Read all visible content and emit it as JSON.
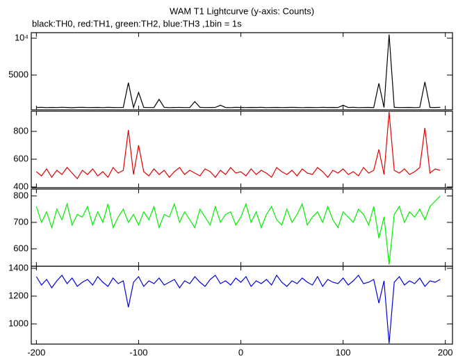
{
  "chart_data": [
    {
      "type": "line",
      "title": "WAM T1 Lightcurve (y-axis: Counts)",
      "subtitle": "black:TH0, red:TH1, green:TH2, blue:TH3 ,1bin = 1s",
      "x": [
        -200,
        -195,
        -190,
        -185,
        -180,
        -175,
        -170,
        -165,
        -160,
        -155,
        -150,
        -145,
        -140,
        -135,
        -130,
        -125,
        -120,
        -115,
        -110,
        -105,
        -100,
        -95,
        -90,
        -85,
        -80,
        -75,
        -70,
        -65,
        -60,
        -55,
        -50,
        -45,
        -40,
        -35,
        -30,
        -25,
        -20,
        -15,
        -10,
        -5,
        0,
        5,
        10,
        15,
        20,
        25,
        30,
        35,
        40,
        45,
        50,
        55,
        60,
        65,
        70,
        75,
        80,
        85,
        90,
        95,
        100,
        105,
        110,
        115,
        120,
        125,
        130,
        135,
        140,
        145,
        150,
        155,
        160,
        165,
        170,
        175,
        180,
        185,
        190,
        195
      ],
      "values": [
        600,
        620,
        580,
        610,
        590,
        630,
        600,
        570,
        610,
        620,
        590,
        600,
        610,
        580,
        620,
        600,
        590,
        610,
        3960,
        600,
        2640,
        610,
        590,
        600,
        1700,
        620,
        580,
        600,
        610,
        590,
        600,
        1400,
        620,
        590,
        600,
        610,
        900,
        600,
        580,
        620,
        600,
        590,
        610,
        600,
        620,
        580,
        600,
        610,
        590,
        600,
        620,
        600,
        580,
        610,
        600,
        590,
        620,
        600,
        610,
        590,
        900,
        600,
        620,
        580,
        600,
        610,
        590,
        3870,
        600,
        10500,
        620,
        590,
        600,
        610,
        580,
        600,
        4060,
        610,
        600,
        620
      ],
      "color": "#000000",
      "xlim": [
        -205,
        207
      ],
      "ylim": [
        280,
        10750
      ],
      "yticks": [
        5000,
        {
          "value": 10000,
          "label": "10⁴"
        }
      ]
    },
    {
      "type": "line",
      "x": [
        -200,
        -195,
        -190,
        -185,
        -180,
        -175,
        -170,
        -165,
        -160,
        -155,
        -150,
        -145,
        -140,
        -135,
        -130,
        -125,
        -120,
        -115,
        -110,
        -105,
        -100,
        -95,
        -90,
        -85,
        -80,
        -75,
        -70,
        -65,
        -60,
        -55,
        -50,
        -45,
        -40,
        -35,
        -30,
        -25,
        -20,
        -15,
        -10,
        -5,
        0,
        5,
        10,
        15,
        20,
        25,
        30,
        35,
        40,
        45,
        50,
        55,
        60,
        65,
        70,
        75,
        80,
        85,
        90,
        95,
        100,
        105,
        110,
        115,
        120,
        125,
        130,
        135,
        140,
        145,
        150,
        155,
        160,
        165,
        170,
        175,
        180,
        185,
        190,
        195
      ],
      "values": [
        510,
        480,
        530,
        470,
        520,
        490,
        540,
        500,
        460,
        520,
        490,
        530,
        480,
        510,
        470,
        540,
        500,
        520,
        810,
        490,
        700,
        510,
        480,
        530,
        490,
        520,
        470,
        510,
        540,
        490,
        520,
        500,
        480,
        530,
        510,
        470,
        520,
        490,
        540,
        500,
        510,
        480,
        530,
        490,
        520,
        500,
        470,
        540,
        510,
        490,
        520,
        480,
        530,
        500,
        490,
        540,
        510,
        470,
        520,
        500,
        530,
        490,
        510,
        480,
        540,
        500,
        520,
        670,
        490,
        940,
        520,
        500,
        530,
        490,
        510,
        540,
        825,
        500,
        530,
        520
      ],
      "color": "#e00000",
      "xlim": [
        -205,
        207
      ],
      "ylim": [
        395,
        945
      ],
      "yticks": [
        400,
        600,
        800
      ]
    },
    {
      "type": "line",
      "x": [
        -200,
        -195,
        -190,
        -185,
        -180,
        -175,
        -170,
        -165,
        -160,
        -155,
        -150,
        -145,
        -140,
        -135,
        -130,
        -125,
        -120,
        -115,
        -110,
        -105,
        -100,
        -95,
        -90,
        -85,
        -80,
        -75,
        -70,
        -65,
        -60,
        -55,
        -50,
        -45,
        -40,
        -35,
        -30,
        -25,
        -20,
        -15,
        -10,
        -5,
        0,
        5,
        10,
        15,
        20,
        25,
        30,
        35,
        40,
        45,
        50,
        55,
        60,
        65,
        70,
        75,
        80,
        85,
        90,
        95,
        100,
        105,
        110,
        115,
        120,
        125,
        130,
        135,
        140,
        145,
        150,
        155,
        160,
        165,
        170,
        175,
        180,
        185,
        190,
        195
      ],
      "values": [
        760,
        700,
        740,
        680,
        750,
        710,
        770,
        690,
        730,
        720,
        760,
        690,
        740,
        700,
        770,
        680,
        720,
        750,
        700,
        730,
        690,
        740,
        710,
        760,
        680,
        730,
        720,
        770,
        700,
        740,
        710,
        680,
        750,
        720,
        690,
        760,
        700,
        730,
        740,
        690,
        720,
        770,
        700,
        740,
        680,
        730,
        760,
        710,
        690,
        750,
        700,
        730,
        770,
        690,
        720,
        740,
        700,
        760,
        710,
        680,
        740,
        720,
        700,
        750,
        730,
        690,
        760,
        640,
        720,
        540,
        730,
        760,
        700,
        740,
        720,
        750,
        710,
        760,
        780,
        800
      ],
      "color": "#00ee00",
      "xlim": [
        -205,
        207
      ],
      "ylim": [
        534,
        826
      ],
      "yticks": [
        600,
        700,
        800
      ]
    },
    {
      "type": "line",
      "x": [
        -200,
        -195,
        -190,
        -185,
        -180,
        -175,
        -170,
        -165,
        -160,
        -155,
        -150,
        -145,
        -140,
        -135,
        -130,
        -125,
        -120,
        -115,
        -110,
        -105,
        -100,
        -95,
        -90,
        -85,
        -80,
        -75,
        -70,
        -65,
        -60,
        -55,
        -50,
        -45,
        -40,
        -35,
        -30,
        -25,
        -20,
        -15,
        -10,
        -5,
        0,
        5,
        10,
        15,
        20,
        25,
        30,
        35,
        40,
        45,
        50,
        55,
        60,
        65,
        70,
        75,
        80,
        85,
        90,
        95,
        100,
        105,
        110,
        115,
        120,
        125,
        130,
        135,
        140,
        145,
        150,
        155,
        160,
        165,
        170,
        175,
        180,
        185,
        190,
        195
      ],
      "values": [
        1340,
        1280,
        1320,
        1260,
        1310,
        1350,
        1290,
        1330,
        1270,
        1300,
        1320,
        1280,
        1340,
        1300,
        1270,
        1330,
        1290,
        1310,
        1120,
        1300,
        1340,
        1270,
        1310,
        1290,
        1330,
        1280,
        1300,
        1320,
        1260,
        1310,
        1290,
        1340,
        1300,
        1270,
        1320,
        1350,
        1290,
        1310,
        1280,
        1330,
        1300,
        1340,
        1270,
        1310,
        1290,
        1320,
        1280,
        1350,
        1300,
        1270,
        1310,
        1290,
        1330,
        1300,
        1280,
        1340,
        1270,
        1320,
        1300,
        1290,
        1330,
        1280,
        1310,
        1350,
        1290,
        1300,
        1320,
        1150,
        1310,
        860,
        1300,
        1340,
        1280,
        1310,
        1290,
        1330,
        1270,
        1310,
        1300,
        1320
      ],
      "color": "#0000dd",
      "xlim": [
        -205,
        207
      ],
      "ylim": [
        855,
        1415
      ],
      "yticks": [
        1000,
        1200,
        1400
      ],
      "xticks": [
        -200,
        -100,
        0,
        100,
        200
      ]
    }
  ]
}
